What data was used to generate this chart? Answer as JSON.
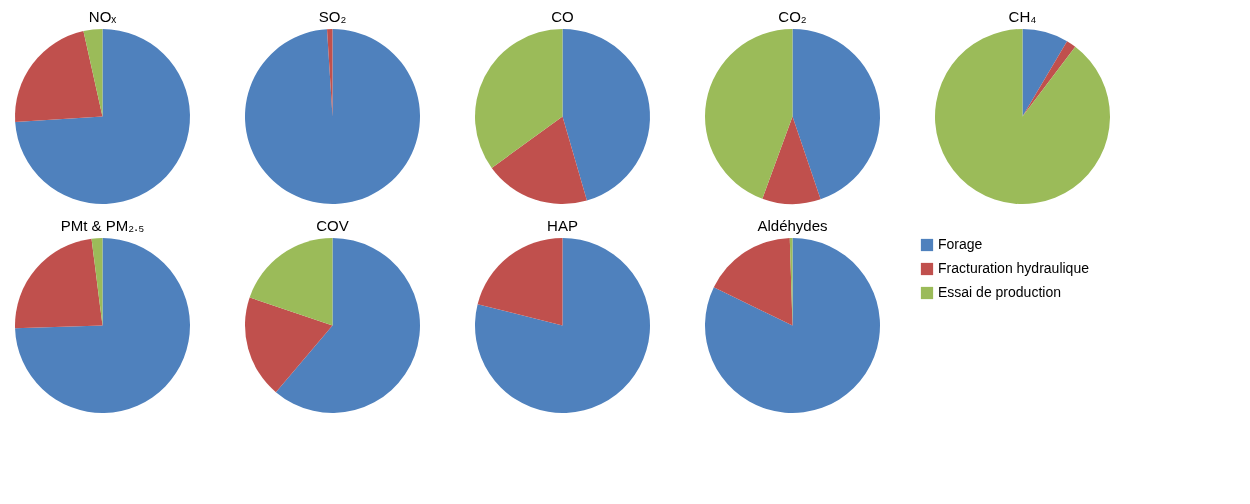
{
  "chart_data": [
    {
      "type": "pie",
      "title": "NOₓ",
      "categories": [
        null,
        null,
        null
      ],
      "values": [
        74,
        22.5,
        3.5
      ],
      "colors": [
        "#4f81bd",
        "#c0504d",
        "#9bbb59"
      ],
      "legend": false
    },
    {
      "type": "pie",
      "title": "SO₂",
      "categories": [
        null,
        null,
        null
      ],
      "values": [
        99,
        1,
        0
      ],
      "colors": [
        "#4f81bd",
        "#c0504d",
        "#9bbb59"
      ],
      "legend": false
    },
    {
      "type": "pie",
      "title": "CO",
      "categories": [
        null,
        null,
        null
      ],
      "values": [
        45.5,
        19.5,
        35
      ],
      "colors": [
        "#4f81bd",
        "#c0504d",
        "#9bbb59"
      ],
      "legend": false
    },
    {
      "type": "pie",
      "title": "CO₂",
      "categories": [
        null,
        null,
        null
      ],
      "values": [
        44.8,
        10.8,
        44.4
      ],
      "colors": [
        "#4f81bd",
        "#c0504d",
        "#9bbb59"
      ],
      "legend": false
    },
    {
      "type": "pie",
      "title": "CH₄",
      "categories": [
        null,
        null,
        null
      ],
      "values": [
        8.5,
        1.8,
        89.7
      ],
      "colors": [
        "#4f81bd",
        "#c0504d",
        "#9bbb59"
      ],
      "legend": false
    },
    {
      "type": "pie",
      "title": "PMt & PM₂.₅",
      "categories": [
        null,
        null,
        null
      ],
      "values": [
        74.5,
        23.5,
        2
      ],
      "colors": [
        "#4f81bd",
        "#c0504d",
        "#9bbb59"
      ],
      "legend": false
    },
    {
      "type": "pie",
      "title": "COV",
      "categories": [
        null,
        null,
        null
      ],
      "values": [
        61.2,
        19,
        19.8
      ],
      "colors": [
        "#4f81bd",
        "#c0504d",
        "#9bbb59"
      ],
      "legend": false
    },
    {
      "type": "pie",
      "title": "HAP",
      "categories": [
        null,
        null,
        null
      ],
      "values": [
        78.9,
        21.1,
        0
      ],
      "colors": [
        "#4f81bd",
        "#c0504d",
        "#9bbb59"
      ],
      "legend": false
    },
    {
      "type": "pie",
      "title": "Aldéhydes",
      "categories": [
        "Forage",
        "Fracturation hydraulique",
        "Essai de production"
      ],
      "values": [
        82.2,
        17.3,
        0.5
      ],
      "colors": [
        "#4f81bd",
        "#c0504d",
        "#9bbb59"
      ],
      "legend": "right"
    }
  ]
}
